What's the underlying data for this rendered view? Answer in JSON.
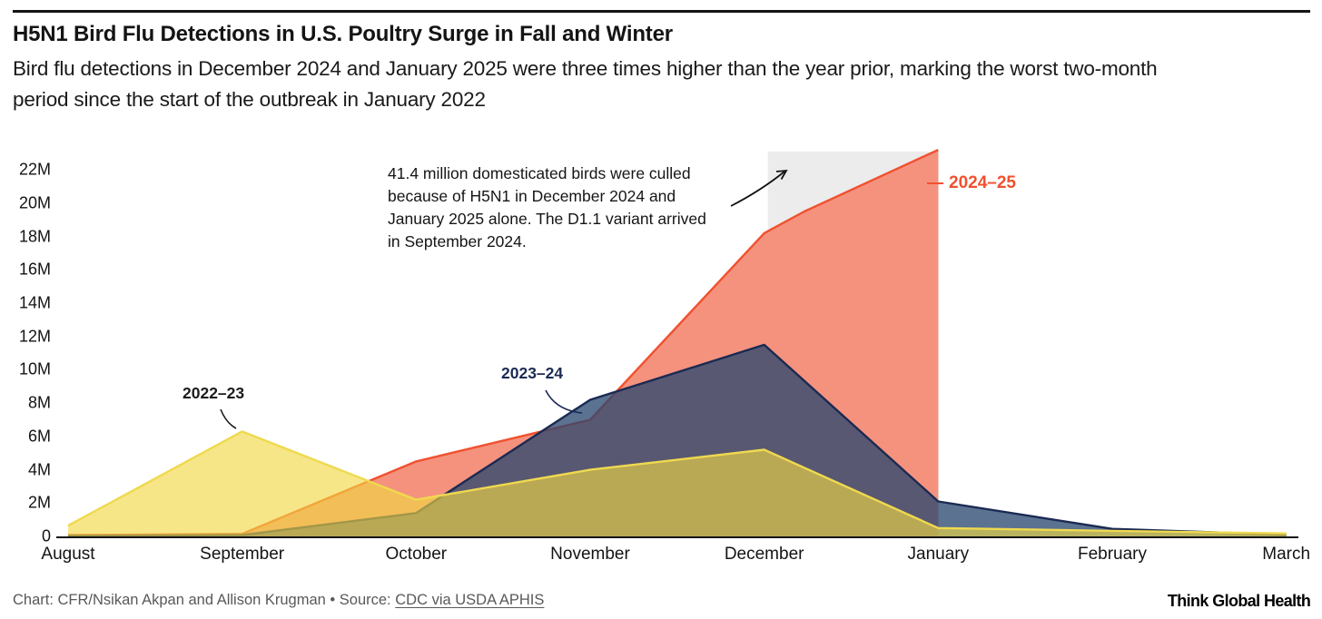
{
  "header": {
    "title": "H5N1 Bird Flu Detections in U.S. Poultry Surge in Fall and Winter",
    "subtitle_lines": [
      "Bird flu detections in December 2024 and January 2025 were three times higher than the year prior, marking the worst two-month",
      "period since the start of the outbreak in January 2022"
    ]
  },
  "chart_data": {
    "type": "area",
    "unit": "millions of birds",
    "x_labels": [
      "August",
      "September",
      "October",
      "November",
      "December",
      "January",
      "February",
      "March"
    ],
    "y_ticks": [
      {
        "v": 0,
        "label": "0"
      },
      {
        "v": 2,
        "label": "2M"
      },
      {
        "v": 4,
        "label": "4M"
      },
      {
        "v": 6,
        "label": "6M"
      },
      {
        "v": 8,
        "label": "8M"
      },
      {
        "v": 10,
        "label": "10M"
      },
      {
        "v": 12,
        "label": "12M"
      },
      {
        "v": 14,
        "label": "14M"
      },
      {
        "v": 16,
        "label": "16M"
      },
      {
        "v": 18,
        "label": "18M"
      },
      {
        "v": 20,
        "label": "20M"
      },
      {
        "v": 22,
        "label": "22M"
      }
    ],
    "ylim": [
      0,
      23.5
    ],
    "grid": false,
    "series": [
      {
        "name": "2022–23",
        "fill": "rgba(241,216,66,0.63)",
        "stroke": "#efd94f",
        "points": [
          [
            0,
            0.65
          ],
          [
            1,
            6.3
          ],
          [
            2,
            2.2
          ],
          [
            3,
            4.0
          ],
          [
            4,
            5.2
          ],
          [
            5,
            0.5
          ],
          [
            6,
            0.33
          ],
          [
            7,
            0.18
          ]
        ]
      },
      {
        "name": "2023–24",
        "fill": "rgba(40,70,110,0.76)",
        "stroke": "#1b2a52",
        "points": [
          [
            0,
            0.03
          ],
          [
            1,
            0.08
          ],
          [
            2,
            1.4
          ],
          [
            3,
            8.2
          ],
          [
            4,
            11.5
          ],
          [
            5,
            2.1
          ],
          [
            6,
            0.45
          ],
          [
            7,
            0.1
          ]
        ]
      },
      {
        "name": "2024–25",
        "fill": "#f4927e",
        "stroke": "#f0512f",
        "points": [
          [
            0,
            0.08
          ],
          [
            1,
            0.15
          ],
          [
            2,
            4.5
          ],
          [
            3,
            7.0
          ],
          [
            4,
            18.2
          ],
          [
            4.23,
            19.5
          ],
          [
            5,
            23.2
          ]
        ]
      }
    ],
    "highlight_band": {
      "from_month": "December",
      "to_month": "January",
      "color": "#ececec"
    },
    "annotations": {
      "note": {
        "lines": [
          "41.4 million domesticated birds were culled",
          "because of H5N1 in December 2024 and",
          "January 2025 alone. The D1.1 variant arrived",
          "in September 2024."
        ]
      }
    },
    "colors": {
      "axis": "#141414",
      "note_arrow": "#141414",
      "label_2022_23": "#1b1b1b",
      "label_2023_24": "#1c2b55",
      "label_2024_25": "#f0512f"
    }
  },
  "footer": {
    "credit": "Chart: CFR/Nsikan Akpan and Allison Krugman • Source: ",
    "source_link": "CDC via USDA APHIS",
    "logo": "Think Global Health"
  }
}
